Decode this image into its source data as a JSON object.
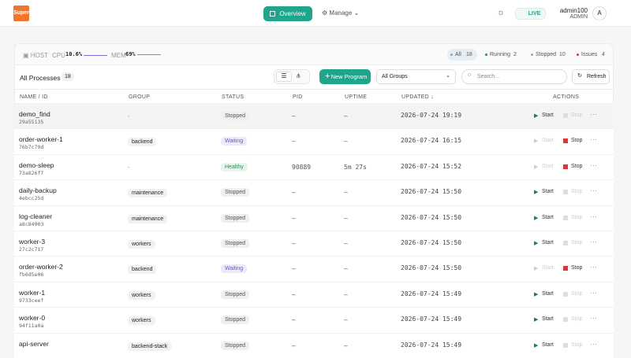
{
  "header": {
    "logo": "Super",
    "nav": [
      "Overview",
      "Manage"
    ],
    "live": "LIVE",
    "user": {
      "name": "admin100",
      "role": "ADMIN",
      "avatar": "A"
    }
  },
  "stats": {
    "host": "HOST",
    "cpu": {
      "label": "CPU",
      "value": "10.6%"
    },
    "mem": {
      "label": "MEM",
      "value": "69%"
    }
  },
  "filters": [
    {
      "label": "All",
      "count": "18",
      "color": "#9aa3ad"
    },
    {
      "label": "Running",
      "count": "2",
      "color": "#2e8a57"
    },
    {
      "label": "Stopped",
      "count": "10",
      "color": "#9aa3ad"
    },
    {
      "label": "Issues",
      "count": "4",
      "color": "#d9363e"
    }
  ],
  "toolbar": {
    "title": "All Processes",
    "count": "18",
    "new": "New Program",
    "group_select": "All Groups",
    "search_placeholder": "Search...",
    "refresh": "Refresh"
  },
  "table": {
    "columns": [
      "NAME / ID",
      "GROUP",
      "STATUS",
      "PID",
      "UPTIME",
      "UPDATED",
      "ACTIONS"
    ],
    "actions": {
      "start": "Start",
      "stop": "Stop"
    },
    "rows": [
      {
        "name": "demo_find",
        "id": "29a55135",
        "group": "-",
        "status": "Stopped",
        "tone": "neutral",
        "pid": "–",
        "uptime": "–",
        "updated": "2026-07-24 19:19",
        "active": false
      },
      {
        "name": "order-worker-1",
        "id": "76b7c79d",
        "group": "backend",
        "status": "Waiting",
        "tone": "pending",
        "pid": "–",
        "uptime": "–",
        "updated": "2026-07-24 16:15",
        "active": true
      },
      {
        "name": "demo-sleep",
        "id": "73a826f7",
        "group": "-",
        "status": "Healthy",
        "tone": "success",
        "pid": "90889",
        "uptime": "5m 27s",
        "updated": "2026-07-24 15:52",
        "active": true
      },
      {
        "name": "daily-backup",
        "id": "4ebcc25d",
        "group": "maintenance",
        "status": "Stopped",
        "tone": "neutral",
        "pid": "–",
        "uptime": "–",
        "updated": "2026-07-24 15:50",
        "active": false
      },
      {
        "name": "log-cleaner",
        "id": "a8c84903",
        "group": "maintenance",
        "status": "Stopped",
        "tone": "neutral",
        "pid": "–",
        "uptime": "–",
        "updated": "2026-07-24 15:50",
        "active": false
      },
      {
        "name": "worker-3",
        "id": "27c2c717",
        "group": "workers",
        "status": "Stopped",
        "tone": "neutral",
        "pid": "–",
        "uptime": "–",
        "updated": "2026-07-24 15:50",
        "active": false
      },
      {
        "name": "order-worker-2",
        "id": "fb6d5e06",
        "group": "backend",
        "status": "Waiting",
        "tone": "pending",
        "pid": "–",
        "uptime": "–",
        "updated": "2026-07-24 15:50",
        "active": true
      },
      {
        "name": "worker-1",
        "id": "9733ceef",
        "group": "workers",
        "status": "Stopped",
        "tone": "neutral",
        "pid": "–",
        "uptime": "–",
        "updated": "2026-07-24 15:49",
        "active": false
      },
      {
        "name": "worker-0",
        "id": "94f11a0a",
        "group": "workers",
        "status": "Stopped",
        "tone": "neutral",
        "pid": "–",
        "uptime": "–",
        "updated": "2026-07-24 15:49",
        "active": false
      },
      {
        "name": "api-server",
        "group": "backend-stack",
        "status": "Stopped",
        "tone": "neutral",
        "pid": "–",
        "uptime": "–",
        "updated": "2026-07-24 15:49",
        "active": false
      }
    ]
  }
}
